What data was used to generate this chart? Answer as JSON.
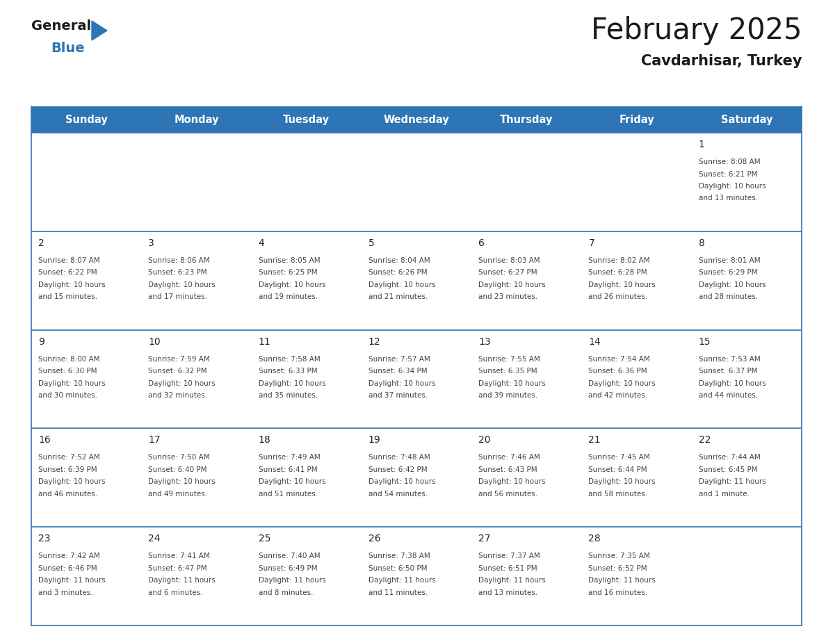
{
  "title": "February 2025",
  "subtitle": "Cavdarhisar, Turkey",
  "header_color": "#2e75b6",
  "header_text_color": "#ffffff",
  "border_color": "#2e75b6",
  "day_headers": [
    "Sunday",
    "Monday",
    "Tuesday",
    "Wednesday",
    "Thursday",
    "Friday",
    "Saturday"
  ],
  "title_color": "#1a1a1a",
  "subtitle_color": "#1a1a1a",
  "day_number_color": "#222222",
  "cell_text_color": "#444444",
  "logo_general_color": "#1a1a1a",
  "logo_blue_color": "#2e75b6",
  "logo_triangle_color": "#2e75b6",
  "calendar": [
    [
      null,
      null,
      null,
      null,
      null,
      null,
      {
        "day": "1",
        "sunrise": "8:08 AM",
        "sunset": "6:21 PM",
        "daylight_h": "10 hours",
        "daylight_m": "and 13 minutes."
      }
    ],
    [
      {
        "day": "2",
        "sunrise": "8:07 AM",
        "sunset": "6:22 PM",
        "daylight_h": "10 hours",
        "daylight_m": "and 15 minutes."
      },
      {
        "day": "3",
        "sunrise": "8:06 AM",
        "sunset": "6:23 PM",
        "daylight_h": "10 hours",
        "daylight_m": "and 17 minutes."
      },
      {
        "day": "4",
        "sunrise": "8:05 AM",
        "sunset": "6:25 PM",
        "daylight_h": "10 hours",
        "daylight_m": "and 19 minutes."
      },
      {
        "day": "5",
        "sunrise": "8:04 AM",
        "sunset": "6:26 PM",
        "daylight_h": "10 hours",
        "daylight_m": "and 21 minutes."
      },
      {
        "day": "6",
        "sunrise": "8:03 AM",
        "sunset": "6:27 PM",
        "daylight_h": "10 hours",
        "daylight_m": "and 23 minutes."
      },
      {
        "day": "7",
        "sunrise": "8:02 AM",
        "sunset": "6:28 PM",
        "daylight_h": "10 hours",
        "daylight_m": "and 26 minutes."
      },
      {
        "day": "8",
        "sunrise": "8:01 AM",
        "sunset": "6:29 PM",
        "daylight_h": "10 hours",
        "daylight_m": "and 28 minutes."
      }
    ],
    [
      {
        "day": "9",
        "sunrise": "8:00 AM",
        "sunset": "6:30 PM",
        "daylight_h": "10 hours",
        "daylight_m": "and 30 minutes."
      },
      {
        "day": "10",
        "sunrise": "7:59 AM",
        "sunset": "6:32 PM",
        "daylight_h": "10 hours",
        "daylight_m": "and 32 minutes."
      },
      {
        "day": "11",
        "sunrise": "7:58 AM",
        "sunset": "6:33 PM",
        "daylight_h": "10 hours",
        "daylight_m": "and 35 minutes."
      },
      {
        "day": "12",
        "sunrise": "7:57 AM",
        "sunset": "6:34 PM",
        "daylight_h": "10 hours",
        "daylight_m": "and 37 minutes."
      },
      {
        "day": "13",
        "sunrise": "7:55 AM",
        "sunset": "6:35 PM",
        "daylight_h": "10 hours",
        "daylight_m": "and 39 minutes."
      },
      {
        "day": "14",
        "sunrise": "7:54 AM",
        "sunset": "6:36 PM",
        "daylight_h": "10 hours",
        "daylight_m": "and 42 minutes."
      },
      {
        "day": "15",
        "sunrise": "7:53 AM",
        "sunset": "6:37 PM",
        "daylight_h": "10 hours",
        "daylight_m": "and 44 minutes."
      }
    ],
    [
      {
        "day": "16",
        "sunrise": "7:52 AM",
        "sunset": "6:39 PM",
        "daylight_h": "10 hours",
        "daylight_m": "and 46 minutes."
      },
      {
        "day": "17",
        "sunrise": "7:50 AM",
        "sunset": "6:40 PM",
        "daylight_h": "10 hours",
        "daylight_m": "and 49 minutes."
      },
      {
        "day": "18",
        "sunrise": "7:49 AM",
        "sunset": "6:41 PM",
        "daylight_h": "10 hours",
        "daylight_m": "and 51 minutes."
      },
      {
        "day": "19",
        "sunrise": "7:48 AM",
        "sunset": "6:42 PM",
        "daylight_h": "10 hours",
        "daylight_m": "and 54 minutes."
      },
      {
        "day": "20",
        "sunrise": "7:46 AM",
        "sunset": "6:43 PM",
        "daylight_h": "10 hours",
        "daylight_m": "and 56 minutes."
      },
      {
        "day": "21",
        "sunrise": "7:45 AM",
        "sunset": "6:44 PM",
        "daylight_h": "10 hours",
        "daylight_m": "and 58 minutes."
      },
      {
        "day": "22",
        "sunrise": "7:44 AM",
        "sunset": "6:45 PM",
        "daylight_h": "11 hours",
        "daylight_m": "and 1 minute."
      }
    ],
    [
      {
        "day": "23",
        "sunrise": "7:42 AM",
        "sunset": "6:46 PM",
        "daylight_h": "11 hours",
        "daylight_m": "and 3 minutes."
      },
      {
        "day": "24",
        "sunrise": "7:41 AM",
        "sunset": "6:47 PM",
        "daylight_h": "11 hours",
        "daylight_m": "and 6 minutes."
      },
      {
        "day": "25",
        "sunrise": "7:40 AM",
        "sunset": "6:49 PM",
        "daylight_h": "11 hours",
        "daylight_m": "and 8 minutes."
      },
      {
        "day": "26",
        "sunrise": "7:38 AM",
        "sunset": "6:50 PM",
        "daylight_h": "11 hours",
        "daylight_m": "and 11 minutes."
      },
      {
        "day": "27",
        "sunrise": "7:37 AM",
        "sunset": "6:51 PM",
        "daylight_h": "11 hours",
        "daylight_m": "and 13 minutes."
      },
      {
        "day": "28",
        "sunrise": "7:35 AM",
        "sunset": "6:52 PM",
        "daylight_h": "11 hours",
        "daylight_m": "and 16 minutes."
      },
      null
    ]
  ]
}
